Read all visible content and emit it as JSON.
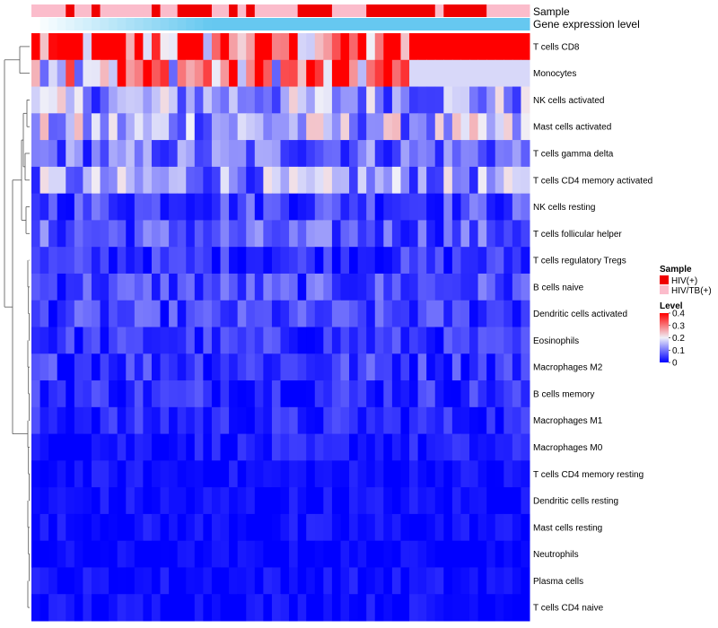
{
  "chart_data": {
    "type": "heatmap",
    "title": "",
    "annotations": {
      "sample_label": "Sample",
      "gene_label": "Gene expression level"
    },
    "columns": 58,
    "rows": [
      "T cells CD8",
      "Monocytes",
      "NK cells activated",
      "Mast cells activated",
      "T cells gamma delta",
      "T cells CD4 memory activated",
      "NK cells resting",
      "T cells follicular helper",
      "T cells regulatory  Tregs",
      "B cells naive",
      "Dendritic cells activated",
      "Eosinophils",
      "Macrophages M2",
      "B cells memory",
      "Macrophages M1",
      "Macrophages M0",
      "T cells CD4 memory resting",
      "Dendritic cells resting",
      "Mast cells resting",
      "Neutrophils",
      "Plasma cells",
      "T cells CD4 naive"
    ],
    "row_means": [
      0.33,
      0.28,
      0.13,
      0.14,
      0.09,
      0.12,
      0.06,
      0.07,
      0.04,
      0.06,
      0.05,
      0.04,
      0.05,
      0.04,
      0.03,
      0.02,
      0.01,
      0.01,
      0.01,
      0.003,
      0.01,
      0.01
    ],
    "sample_groups": "HHHH PPHH ..",
    "sample_pattern": [
      1,
      1,
      1,
      1,
      0,
      1,
      1,
      0,
      1,
      1,
      1,
      1,
      1,
      1,
      0,
      1,
      1,
      0,
      0,
      0,
      0,
      1,
      1,
      0,
      1,
      0,
      1,
      1,
      1,
      1,
      1,
      0,
      0,
      0,
      0,
      1,
      1,
      1,
      1,
      0,
      0,
      0,
      0,
      0,
      0,
      0,
      0,
      1,
      0,
      0,
      0,
      0,
      0,
      1,
      1,
      1,
      1,
      1
    ],
    "gene_level_range": [
      0,
      1
    ],
    "legend": {
      "sample_title": "Sample",
      "sample_entries": [
        {
          "label": "HIV(+)",
          "color": "#f00000"
        },
        {
          "label": "HIV/TB(+)",
          "color": "#fbbccb"
        }
      ],
      "level_title": "Level",
      "level_ticks": [
        "0.4",
        "0.3",
        "0.2",
        "0.1",
        "0"
      ],
      "level_range": [
        0,
        0.4
      ]
    },
    "colors": {
      "low": "#0000ff",
      "mid": "#f0f0f8",
      "high": "#ff0000",
      "gene_low": "#ffffff",
      "gene_high": "#66c8f0"
    }
  }
}
